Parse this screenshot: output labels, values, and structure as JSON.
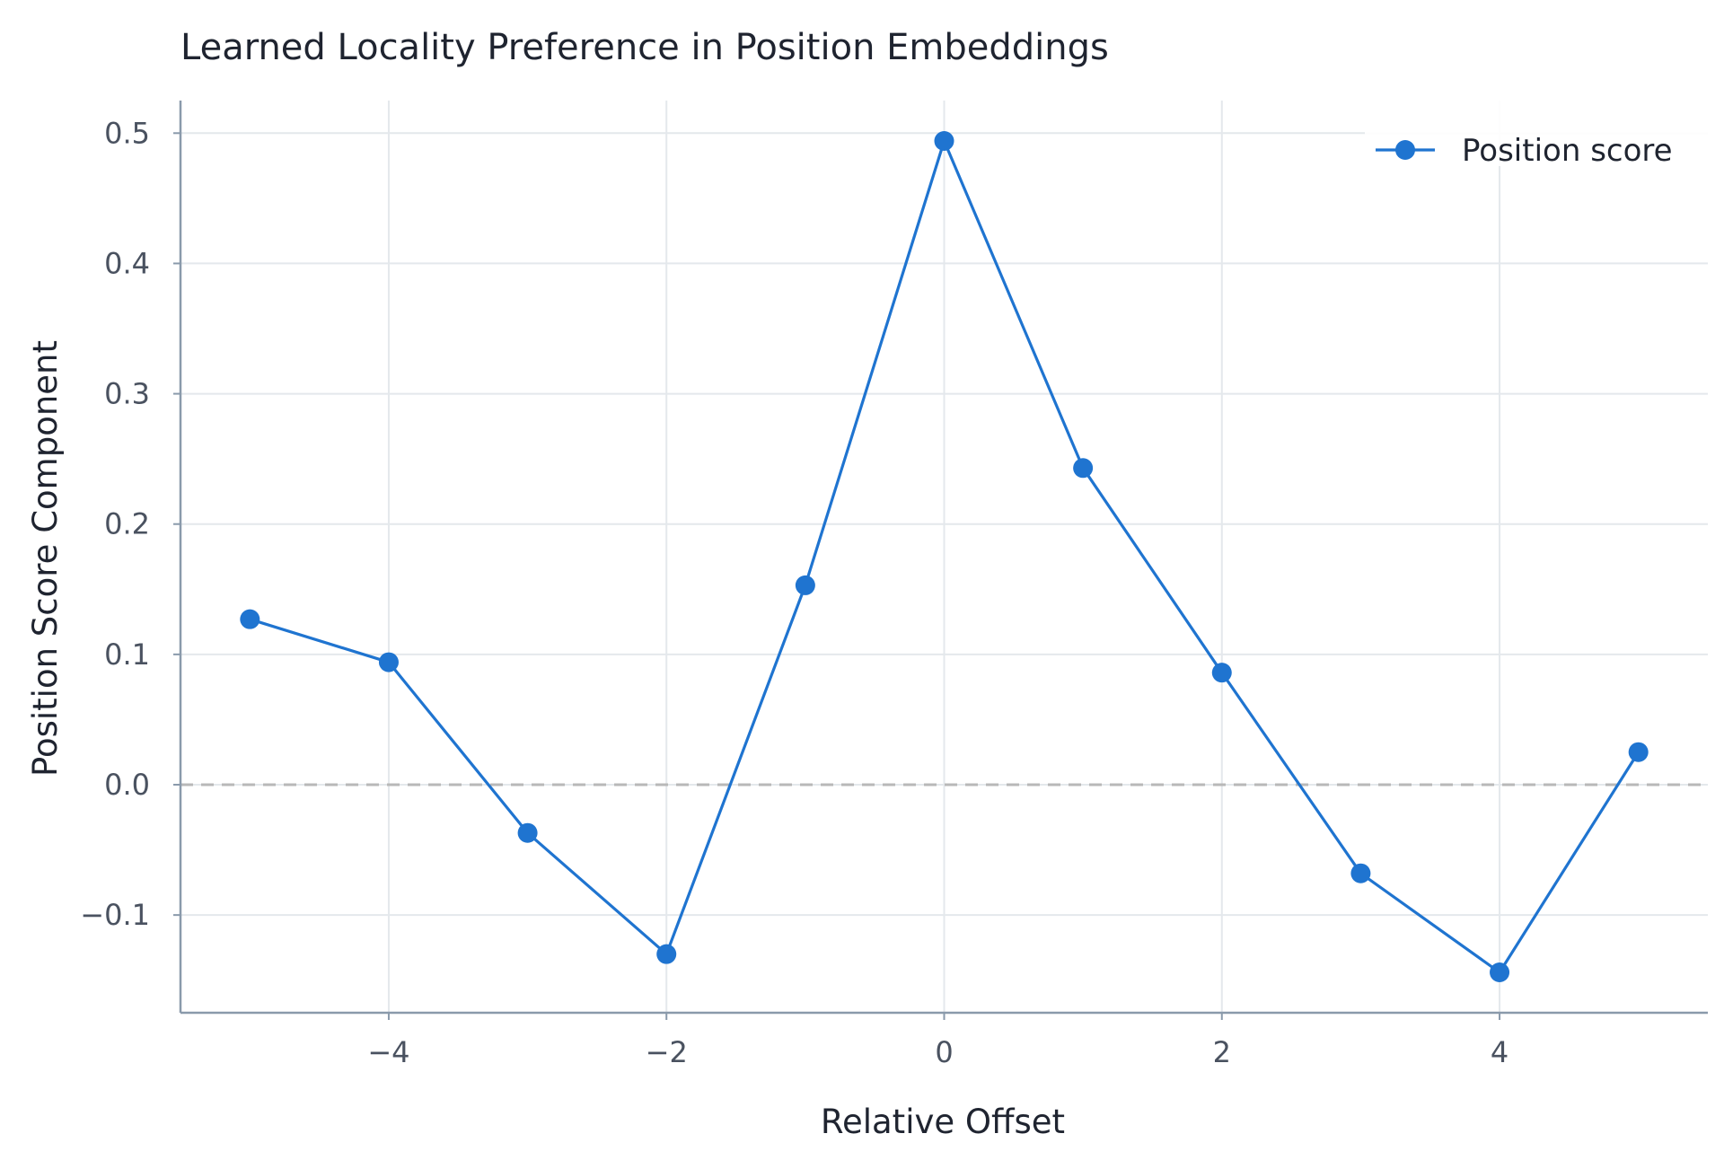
{
  "chart_data": {
    "type": "line",
    "title": "Learned Locality Preference in Position Embeddings",
    "xlabel": "Relative Offset",
    "ylabel": "Position Score Component",
    "xlim": [
      -5.5,
      5.5
    ],
    "ylim": [
      -0.175,
      0.525
    ],
    "xticks": [
      -4,
      -2,
      0,
      2,
      4
    ],
    "xtick_labels": [
      "−4",
      "−2",
      "0",
      "2",
      "4"
    ],
    "yticks": [
      -0.1,
      0.0,
      0.1,
      0.2,
      0.3,
      0.4,
      0.5
    ],
    "ytick_labels": [
      "−0.1",
      "0.0",
      "0.1",
      "0.2",
      "0.3",
      "0.4",
      "0.5"
    ],
    "grid": true,
    "legend_position": "top-right",
    "reference_line": {
      "y": 0.0,
      "style": "dashed",
      "color": "#b8b8b8"
    },
    "colors": {
      "series": "#1f74d0",
      "grid": "#e4e8ec",
      "axis": "#8a9aab"
    },
    "series": [
      {
        "name": "Position score",
        "x": [
          -5,
          -4,
          -3,
          -2,
          -1,
          0,
          1,
          2,
          3,
          4,
          5
        ],
        "y": [
          0.127,
          0.094,
          -0.037,
          -0.13,
          0.153,
          0.494,
          0.243,
          0.086,
          -0.068,
          -0.144,
          0.025
        ]
      }
    ]
  }
}
